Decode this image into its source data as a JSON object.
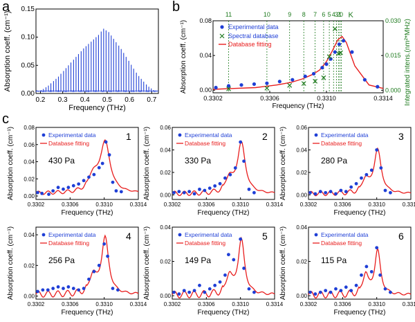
{
  "colors": {
    "spectrum": "#1f3fd6",
    "experimental": "#1f3fd6",
    "fit": "#e81c1c",
    "database": "#1d7a1d",
    "axis": "#000000"
  },
  "panel_letters": {
    "a": "a",
    "b": "b",
    "c": "c"
  },
  "chart_data": [
    {
      "panel": "a",
      "type": "line",
      "xlabel": "Frequency (THz)",
      "ylabel": "Absorption coeff. (cm⁻¹)",
      "xlim": [
        0.18,
        0.73
      ],
      "ylim": [
        0,
        0.15
      ],
      "xticks": [
        0.2,
        0.3,
        0.4,
        0.5,
        0.6,
        0.7
      ],
      "yticks": [
        0.0,
        0.05,
        0.1,
        0.15
      ],
      "xtick_labels": [
        "0.2",
        "0.3",
        "0.4",
        "0.5",
        "0.6",
        "0.7"
      ],
      "ytick_labels": [
        "0.00",
        "0.05",
        "0.10",
        "0.15"
      ],
      "series": [
        {
          "values_note_free": true,
          "x": [
            0.192,
            0.202,
            0.213,
            0.225,
            0.236,
            0.247,
            0.259,
            0.27,
            0.281,
            0.292,
            0.304,
            0.315,
            0.326,
            0.337,
            0.349,
            0.36,
            0.371,
            0.383,
            0.394,
            0.405,
            0.416,
            0.428,
            0.439,
            0.45,
            0.461,
            0.473,
            0.484,
            0.495,
            0.507,
            0.518,
            0.529,
            0.54,
            0.552,
            0.563,
            0.574,
            0.585,
            0.597,
            0.608,
            0.619,
            0.631,
            0.642,
            0.653,
            0.664,
            0.676,
            0.687,
            0.698,
            0.709
          ],
          "y": [
            0.004,
            0.006,
            0.008,
            0.011,
            0.014,
            0.018,
            0.022,
            0.026,
            0.03,
            0.035,
            0.04,
            0.045,
            0.05,
            0.055,
            0.06,
            0.065,
            0.07,
            0.075,
            0.08,
            0.084,
            0.088,
            0.092,
            0.096,
            0.1,
            0.104,
            0.11,
            0.115,
            0.112,
            0.109,
            0.103,
            0.097,
            0.091,
            0.085,
            0.079,
            0.072,
            0.065,
            0.058,
            0.051,
            0.044,
            0.037,
            0.031,
            0.026,
            0.021,
            0.016,
            0.012,
            0.009,
            0.006
          ]
        }
      ]
    },
    {
      "panel": "b",
      "type": "scatter",
      "xlabel": "Frequency (THz)",
      "ylabel": "Absorption coeff. (cm⁻¹)",
      "y2label": "Integrated intens.(nm²*MHz)",
      "xlim": [
        0.3302,
        0.3314
      ],
      "ylim": [
        -0.003,
        0.08
      ],
      "y2lim": [
        -0.0011,
        0.03
      ],
      "xticks": [
        0.3302,
        0.3306,
        0.331,
        0.3314
      ],
      "xtick_labels": [
        "0.3302",
        "0.3306",
        "0.3310",
        "0.3314"
      ],
      "yticks": [
        0.0,
        0.04,
        0.08
      ],
      "ytick_labels": [
        "0.00",
        "0.04",
        "0.08"
      ],
      "y2ticks": [
        0.0,
        0.015,
        0.03
      ],
      "y2tick_labels": [
        "0.000",
        "0.015",
        "0.030"
      ],
      "legend": [
        "Experimental data",
        "Spectral database",
        "Database fitting"
      ],
      "legend_position": "top-left",
      "k_label": "K",
      "k_lines": [
        {
          "label": "11",
          "x": 0.33031
        },
        {
          "label": "10",
          "x": 0.33058
        },
        {
          "label": "9",
          "x": 0.33074
        },
        {
          "label": "8",
          "x": 0.33084
        },
        {
          "label": "7",
          "x": 0.33092
        },
        {
          "label": "6",
          "x": 0.33098
        },
        {
          "label": "5",
          "x": 0.33102
        },
        {
          "label": "4",
          "x": 0.33105
        },
        {
          "label": "3",
          "x": 0.33107
        },
        {
          "label": "2",
          "x": 0.331085
        },
        {
          "label": "1",
          "x": 0.331095
        },
        {
          "label": "0",
          "x": 0.331105
        }
      ],
      "experimental": {
        "x": [
          0.33022,
          0.33031,
          0.3304,
          0.33049,
          0.33058,
          0.33067,
          0.33076,
          0.33085,
          0.33091,
          0.33097,
          0.331,
          0.33103,
          0.33106,
          0.33109,
          0.33112,
          0.33118,
          0.33127,
          0.33136
        ],
        "y": [
          0.003,
          0.005,
          0.006,
          0.007,
          0.008,
          0.01,
          0.012,
          0.016,
          0.019,
          0.026,
          0.03,
          0.036,
          0.044,
          0.053,
          0.057,
          0.044,
          0.012,
          0.004
        ]
      },
      "database": {
        "x": [
          0.33031,
          0.33058,
          0.33074,
          0.33084,
          0.33092,
          0.33098,
          0.33102,
          0.33106,
          0.331085,
          0.3311
        ],
        "y2": [
          0.0006,
          0.0009,
          0.0021,
          0.0029,
          0.0039,
          0.0054,
          0.0145,
          0.0265,
          0.0158,
          0.0162
        ]
      },
      "fit": {
        "x": [
          0.3302,
          0.33035,
          0.3305,
          0.33065,
          0.33075,
          0.33083,
          0.3309,
          0.33095,
          0.331,
          0.33104,
          0.33108,
          0.33111,
          0.33114,
          0.3312,
          0.3313,
          0.3314
        ],
        "y": [
          0.001,
          0.002,
          0.003,
          0.006,
          0.009,
          0.013,
          0.018,
          0.023,
          0.033,
          0.045,
          0.058,
          0.062,
          0.055,
          0.028,
          0.006,
          0.002
        ]
      }
    }
  ],
  "small_panels": {
    "xlabel": "Frequency (THz)",
    "ylabel": "Absorption coeff. (cm⁻¹)",
    "legend": [
      "Experimental data",
      "Database fitting"
    ],
    "xlim": [
      0.3302,
      0.3314
    ],
    "xticks": [
      0.3302,
      0.3306,
      0.331,
      0.3314
    ],
    "xtick_labels": [
      "0.3302",
      "0.3306",
      "0.3310",
      "0.3314"
    ],
    "panels": [
      {
        "index": "1",
        "pressure": "430 Pa",
        "ylim": [
          -0.004,
          0.08
        ],
        "yticks": [
          0,
          0.02,
          0.04,
          0.06,
          0.08
        ],
        "ytick_labels": [
          "0.00",
          "0.02",
          "0.04",
          "0.06",
          "0.08"
        ],
        "exp": [
          [
            0.33022,
            0.004
          ],
          [
            0.33027,
            0.003
          ],
          [
            0.33035,
            0.002
          ],
          [
            0.3304,
            0.006
          ],
          [
            0.33046,
            0.01
          ],
          [
            0.33052,
            0.008
          ],
          [
            0.33058,
            0.01
          ],
          [
            0.33064,
            0.012
          ],
          [
            0.3307,
            0.014
          ],
          [
            0.33076,
            0.018
          ],
          [
            0.33082,
            0.022
          ],
          [
            0.33088,
            0.025
          ],
          [
            0.33094,
            0.033
          ],
          [
            0.33098,
            0.038
          ],
          [
            0.33102,
            0.063
          ],
          [
            0.33106,
            0.048
          ],
          [
            0.3311,
            0.016
          ],
          [
            0.33114,
            0.006
          ],
          [
            0.3312,
            0.005
          ]
        ],
        "peak": 0.059,
        "peak_x": 0.33101,
        "width": 7e-05,
        "shoulder": 0.018,
        "base": 0.003
      },
      {
        "index": "2",
        "pressure": "330 Pa",
        "ylim": [
          -0.004,
          0.06
        ],
        "yticks": [
          0,
          0.02,
          0.04,
          0.06
        ],
        "ytick_labels": [
          "0.00",
          "0.02",
          "0.04",
          "0.06"
        ],
        "exp": [
          [
            0.33022,
            0.002
          ],
          [
            0.33028,
            0.003
          ],
          [
            0.33034,
            0.002
          ],
          [
            0.3304,
            0.003
          ],
          [
            0.33046,
            0.001
          ],
          [
            0.33052,
            0.005
          ],
          [
            0.33058,
            0.004
          ],
          [
            0.33064,
            0.006
          ],
          [
            0.3307,
            0.008
          ],
          [
            0.33076,
            0.01
          ],
          [
            0.33082,
            0.015
          ],
          [
            0.33088,
            0.018
          ],
          [
            0.33094,
            0.024
          ],
          [
            0.331,
            0.047
          ],
          [
            0.33104,
            0.03
          ],
          [
            0.3311,
            0.005
          ],
          [
            0.33116,
            0.002
          ]
        ],
        "peak": 0.045,
        "peak_x": 0.33101,
        "width": 5.5e-05,
        "shoulder": 0.013,
        "base": 0.001
      },
      {
        "index": "3",
        "pressure": "280 Pa",
        "ylim": [
          -0.004,
          0.06
        ],
        "yticks": [
          0,
          0.02,
          0.04,
          0.06
        ],
        "ytick_labels": [
          "0.00",
          "0.02",
          "0.04",
          "0.06"
        ],
        "exp": [
          [
            0.33022,
            0.002
          ],
          [
            0.33028,
            0.001
          ],
          [
            0.33034,
            0.003
          ],
          [
            0.3304,
            0.002
          ],
          [
            0.33046,
            0.003
          ],
          [
            0.33052,
            0.001
          ],
          [
            0.33058,
            0.004
          ],
          [
            0.33064,
            0.003
          ],
          [
            0.3307,
            0.007
          ],
          [
            0.33076,
            0.01
          ],
          [
            0.33082,
            0.015
          ],
          [
            0.33088,
            0.018
          ],
          [
            0.33094,
            0.022
          ],
          [
            0.331,
            0.04
          ],
          [
            0.33105,
            0.024
          ],
          [
            0.3311,
            0.004
          ],
          [
            0.33116,
            0.002
          ]
        ],
        "peak": 0.039,
        "peak_x": 0.33101,
        "width": 5e-05,
        "shoulder": 0.012,
        "base": 0.001
      },
      {
        "index": "4",
        "pressure": "256 Pa",
        "ylim": [
          -0.002,
          0.045
        ],
        "yticks": [
          0,
          0.02,
          0.04
        ],
        "ytick_labels": [
          "0.00",
          "0.02",
          "0.04"
        ],
        "exp": [
          [
            0.33022,
            0.003
          ],
          [
            0.33028,
            0.004
          ],
          [
            0.33034,
            0.004
          ],
          [
            0.3304,
            0.005
          ],
          [
            0.33046,
            0.006
          ],
          [
            0.33052,
            0.005
          ],
          [
            0.33058,
            0.006
          ],
          [
            0.33064,
            0.005
          ],
          [
            0.3307,
            0.004
          ],
          [
            0.33076,
            0.005
          ],
          [
            0.33082,
            0.011
          ],
          [
            0.33088,
            0.016
          ],
          [
            0.33094,
            0.02
          ],
          [
            0.331,
            0.034
          ],
          [
            0.33104,
            0.026
          ],
          [
            0.3311,
            0.005
          ],
          [
            0.33116,
            0.004
          ]
        ],
        "peak": 0.037,
        "peak_x": 0.33101,
        "width": 5e-05,
        "shoulder": 0.012,
        "base": 0.001
      },
      {
        "index": "5",
        "pressure": "149 Pa",
        "ylim": [
          -0.002,
          0.04
        ],
        "yticks": [
          0,
          0.02,
          0.04
        ],
        "ytick_labels": [
          "0.00",
          "0.02",
          "0.04"
        ],
        "exp": [
          [
            0.33022,
            0.002
          ],
          [
            0.33028,
            0.001
          ],
          [
            0.33034,
            0.003
          ],
          [
            0.3304,
            0.002
          ],
          [
            0.33046,
            0.003
          ],
          [
            0.33052,
            0.006
          ],
          [
            0.33058,
            0.002
          ],
          [
            0.33064,
            0.004
          ],
          [
            0.3307,
            0.006
          ],
          [
            0.33076,
            0.008
          ],
          [
            0.33082,
            0.012
          ],
          [
            0.33086,
            0.024
          ],
          [
            0.33092,
            0.021
          ],
          [
            0.331,
            0.033
          ],
          [
            0.33104,
            0.016
          ],
          [
            0.3311,
            0.004
          ],
          [
            0.33116,
            0.002
          ]
        ],
        "peak": 0.032,
        "peak_x": 0.33101,
        "width": 4.5e-05,
        "shoulder": 0.011,
        "base": 0.0005
      },
      {
        "index": "6",
        "pressure": "115 Pa",
        "ylim": [
          -0.002,
          0.04
        ],
        "yticks": [
          0,
          0.02,
          0.04
        ],
        "ytick_labels": [
          "0.00",
          "0.02",
          "0.04"
        ],
        "exp": [
          [
            0.33022,
            0.002
          ],
          [
            0.33028,
            0.001
          ],
          [
            0.33034,
            0.002
          ],
          [
            0.3304,
            0.003
          ],
          [
            0.33046,
            0.002
          ],
          [
            0.33052,
            0.004
          ],
          [
            0.33058,
            0.003
          ],
          [
            0.33064,
            0.005
          ],
          [
            0.3307,
            0.003
          ],
          [
            0.33076,
            0.006
          ],
          [
            0.33082,
            0.012
          ],
          [
            0.33088,
            0.017
          ],
          [
            0.33094,
            0.014
          ],
          [
            0.331,
            0.028
          ],
          [
            0.33104,
            0.012
          ],
          [
            0.3311,
            0.004
          ],
          [
            0.33116,
            0.002
          ]
        ],
        "peak": 0.026,
        "peak_x": 0.33101,
        "width": 4e-05,
        "shoulder": 0.012,
        "base": 0.0005
      }
    ]
  }
}
